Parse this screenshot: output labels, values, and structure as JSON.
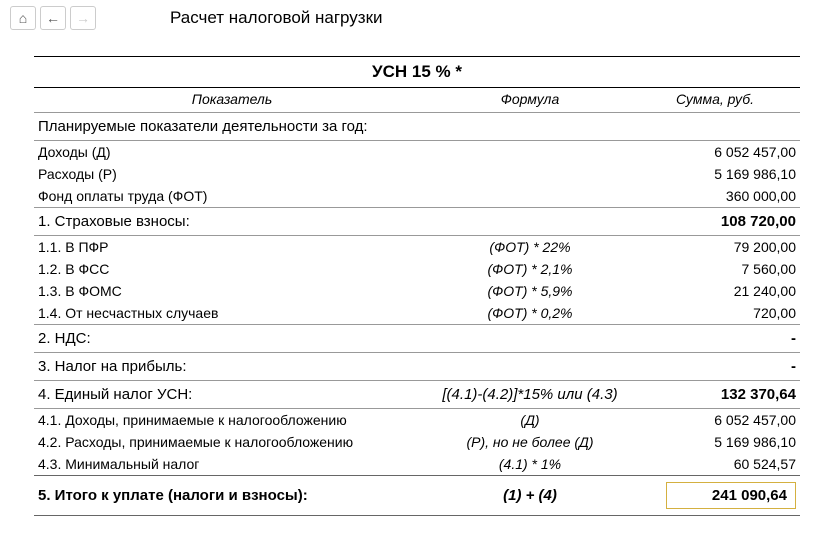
{
  "toolbar": {
    "home_icon": "⌂",
    "back_icon": "←",
    "forward_icon": "→"
  },
  "title": "Расчет налоговой нагрузки",
  "tax_title": "УСН 15 % *",
  "headers": {
    "label": "Показатель",
    "formula": "Формула",
    "sum": "Сумма, руб."
  },
  "planned_header": "Планируемые показатели деятельности за год:",
  "planned": [
    {
      "label": "Доходы (Д)",
      "formula": "",
      "sum": "6 052 457,00"
    },
    {
      "label": "Расходы (Р)",
      "formula": "",
      "sum": "5 169 986,10"
    },
    {
      "label": "Фонд оплаты труда (ФОТ)",
      "formula": "",
      "sum": "360 000,00"
    }
  ],
  "section1": {
    "label": "1. Страховые взносы:",
    "formula": "",
    "sum": "108 720,00"
  },
  "section1_items": [
    {
      "label": "1.1. В ПФР",
      "formula": "(ФОТ) * 22%",
      "sum": "79 200,00"
    },
    {
      "label": "1.2. В ФСС",
      "formula": "(ФОТ) * 2,1%",
      "sum": "7 560,00"
    },
    {
      "label": "1.3. В ФОМС",
      "formula": "(ФОТ) * 5,9%",
      "sum": "21 240,00"
    },
    {
      "label": "1.4. От несчастных случаев",
      "formula": "(ФОТ) * 0,2%",
      "sum": "720,00"
    }
  ],
  "section2": {
    "label": "2. НДС:",
    "formula": "",
    "sum": "-"
  },
  "section3": {
    "label": "3. Налог на прибыль:",
    "formula": "",
    "sum": "-"
  },
  "section4": {
    "label": "4. Единый налог УСН:",
    "formula": "[(4.1)-(4.2)]*15% или (4.3)",
    "sum": "132 370,64"
  },
  "section4_items": [
    {
      "label": "4.1. Доходы, принимаемые к налогообложению",
      "formula": "(Д)",
      "sum": "6 052 457,00"
    },
    {
      "label": "4.2. Расходы, принимаемые к налогообложению",
      "formula": "(Р), но не более (Д)",
      "sum": "5 169 986,10"
    },
    {
      "label": "4.3. Минимальный налог",
      "formula": "(4.1) * 1%",
      "sum": "60 524,57"
    }
  ],
  "section5": {
    "label": "5. Итого к уплате (налоги и взносы):",
    "formula": "(1) + (4)",
    "sum": "241 090,64"
  }
}
